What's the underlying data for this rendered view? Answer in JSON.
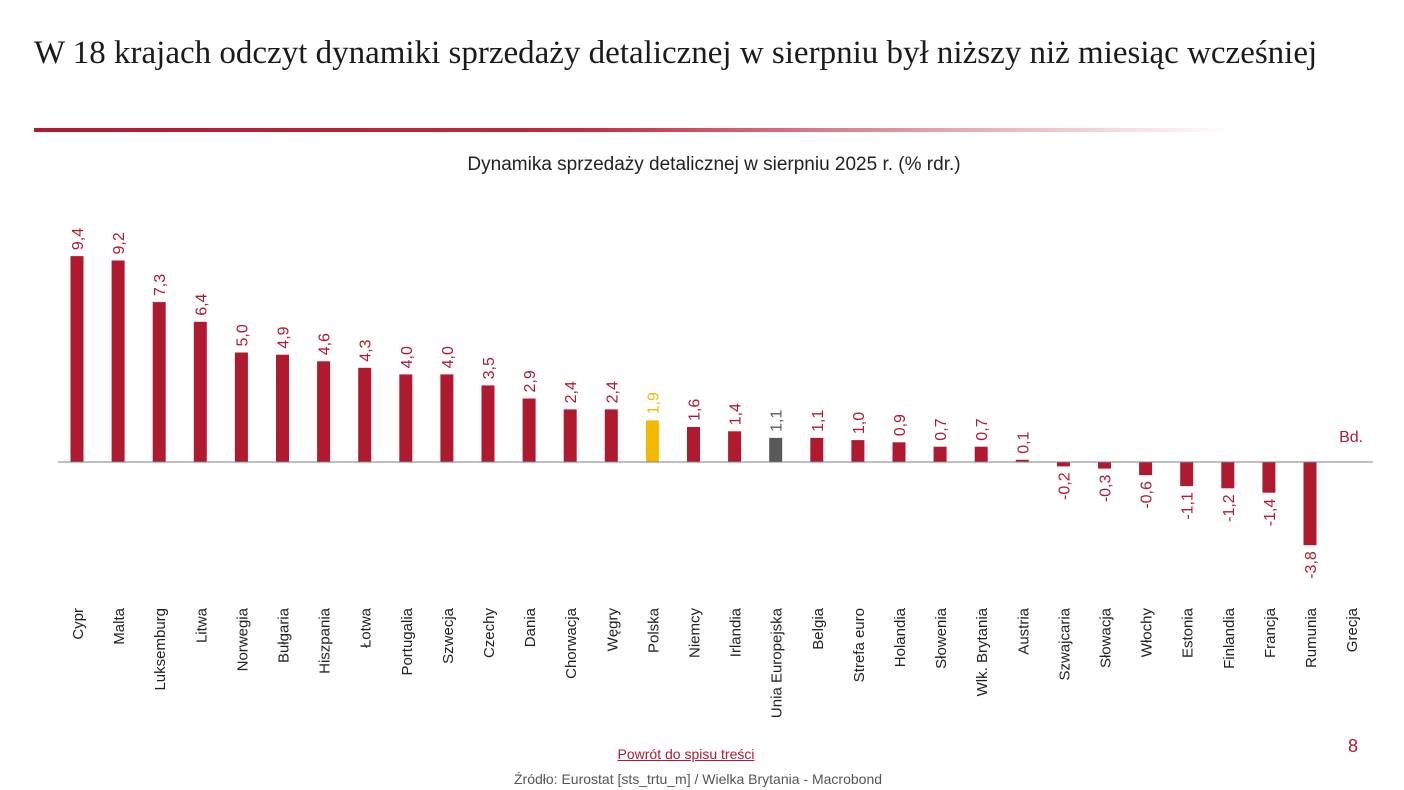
{
  "slide": {
    "title": "W 18 krajach odczyt dynamiki sprzedaży detalicznej w sierpniu był niższy niż miesiąc wcześniej",
    "back_link": "Powrót do spisu treści",
    "source": "Źródło: Eurostat [sts_trtu_m] / Wielka Brytania - Macrobond",
    "page_number": "8"
  },
  "colors": {
    "bar": "#b01a30",
    "poland": "#f5b800",
    "eu": "#595959",
    "label_default": "#b01a30",
    "label_poland": "#f5b800",
    "label_eu": "#595959",
    "axis": "#7f7f7f"
  },
  "chart_data": {
    "type": "bar",
    "title": "Dynamika sprzedaży detalicznej w sierpniu 2025 r. (% rdr.)",
    "xlabel": "",
    "ylabel": "",
    "ylim": [
      -5,
      11
    ],
    "grid": false,
    "legend": "none",
    "categories": [
      "Cypr",
      "Malta",
      "Luksemburg",
      "Litwa",
      "Norwegia",
      "Bułgaria",
      "Hiszpania",
      "Łotwa",
      "Portugalia",
      "Szwecja",
      "Czechy",
      "Dania",
      "Chorwacja",
      "Węgry",
      "Polska",
      "Niemcy",
      "Irlandia",
      "Unia Europejska",
      "Belgia",
      "Strefa euro",
      "Holandia",
      "Słowenia",
      "Wlk. Brytania",
      "Austria",
      "Szwajcaria",
      "Słowacja",
      "Włochy",
      "Estonia",
      "Finlandia",
      "Francja",
      "Rumunia",
      "Grecja"
    ],
    "values": [
      9.4,
      9.2,
      7.3,
      6.4,
      5.0,
      4.9,
      4.6,
      4.3,
      4.0,
      4.0,
      3.5,
      2.9,
      2.4,
      2.4,
      1.9,
      1.6,
      1.4,
      1.1,
      1.1,
      1.0,
      0.9,
      0.7,
      0.7,
      0.1,
      -0.2,
      -0.3,
      -0.6,
      -1.1,
      -1.2,
      -1.4,
      -3.8,
      null
    ],
    "labels": [
      "9,4",
      "9,2",
      "7,3",
      "6,4",
      "5,0",
      "4,9",
      "4,6",
      "4,3",
      "4,0",
      "4,0",
      "3,5",
      "2,9",
      "2,4",
      "2,4",
      "1,9",
      "1,6",
      "1,4",
      "1,1",
      "1,1",
      "1,0",
      "0,9",
      "0,7",
      "0,7",
      "0,1",
      "-0,2",
      "-0,3",
      "-0,6",
      "-1,1",
      "-1,2",
      "-1,4",
      "-3,8",
      "Bd."
    ],
    "highlight": {
      "Polska": "poland",
      "Unia Europejska": "eu"
    }
  }
}
